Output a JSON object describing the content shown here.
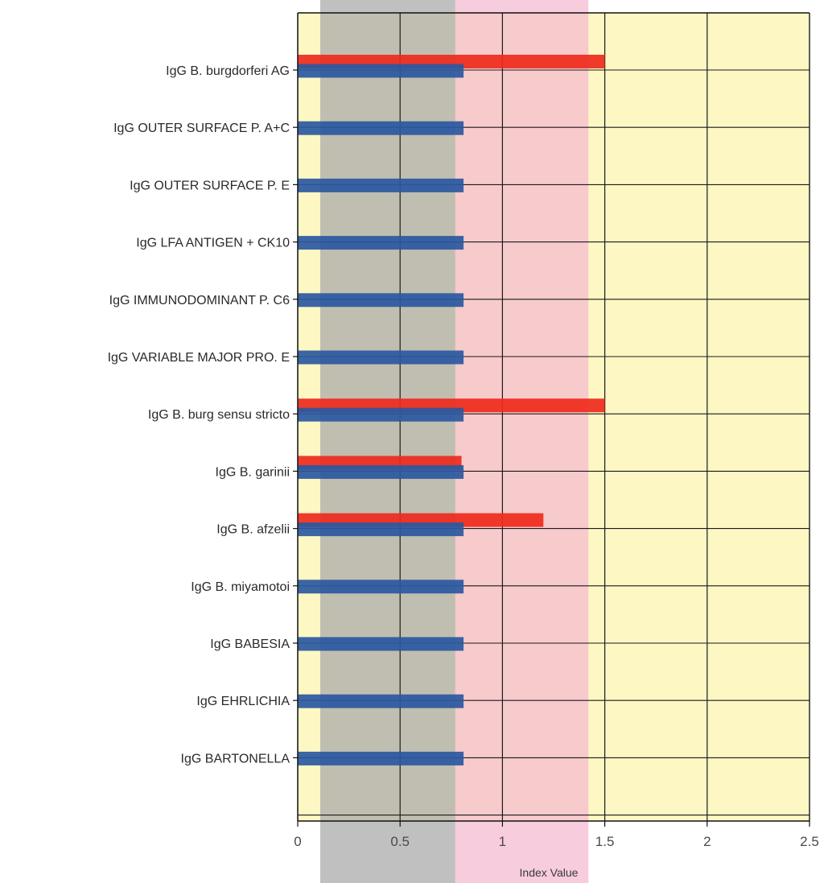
{
  "chart_data": {
    "type": "bar",
    "orientation": "horizontal",
    "categories": [
      "IgG B. burgdorferi AG",
      "IgG OUTER SURFACE P. A+C",
      "IgG OUTER SURFACE P. E",
      "IgG LFA ANTIGEN + CK10",
      "IgG IMMUNODOMINANT P. C6",
      "IgG VARIABLE MAJOR PRO. E",
      "IgG B. burg sensu stricto",
      "IgG B. garinii",
      "IgG B. afzelii",
      "IgG B. miyamotoi",
      "IgG BABESIA",
      "IgG EHRLICHIA",
      "IgG BARTONELLA"
    ],
    "series": [
      {
        "color": "#ee2a1c",
        "values": [
          1.5,
          null,
          null,
          null,
          null,
          null,
          1.5,
          0.8,
          1.2,
          null,
          null,
          null,
          null
        ]
      },
      {
        "color": "#2a58a0",
        "values": [
          0.81,
          0.81,
          0.81,
          0.81,
          0.81,
          0.81,
          0.81,
          0.81,
          0.81,
          0.81,
          0.81,
          0.81,
          0.81
        ]
      }
    ],
    "bands": [
      {
        "from": 0.11,
        "to": 0.77,
        "color": "#a8a8a8"
      },
      {
        "from": 0.77,
        "to": 1.42,
        "color": "#f4b9cf"
      }
    ],
    "plot_background": "#fdf7c4",
    "xlim": [
      0,
      2.5
    ],
    "xticks": [
      0,
      0.5,
      1,
      1.5,
      2,
      2.5
    ],
    "xtick_labels": [
      "0",
      "0.5",
      "1",
      "1.5",
      "2",
      "2.5"
    ],
    "xlabel": "Index Value",
    "ylabel": "",
    "title": "",
    "grid": true,
    "legend": "none"
  }
}
